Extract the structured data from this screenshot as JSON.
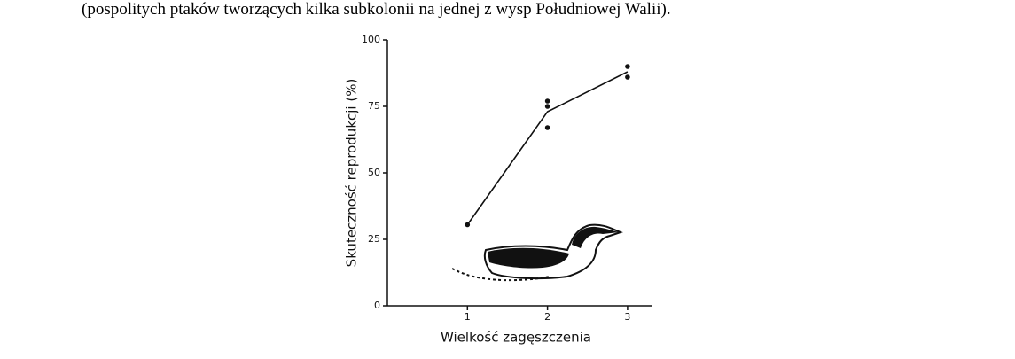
{
  "caption": "(pospolitych ptaków tworzących kilka subkolonii na jednej z wysp Południowej Walii).",
  "chart_data": {
    "type": "scatter",
    "x_label": "Wielkość zagęszczenia",
    "y_label": "Skuteczność reprodukcji (%)",
    "xlim": [
      0,
      3.3
    ],
    "ylim": [
      0,
      100
    ],
    "xticks": [
      1,
      2,
      3
    ],
    "yticks": [
      0,
      25,
      50,
      75,
      100
    ],
    "color": "#111111",
    "series": [
      {
        "type": "scatter",
        "x": [
          1,
          2,
          2,
          2,
          3,
          3
        ],
        "values": [
          30.5,
          77,
          75,
          67,
          90,
          86
        ]
      },
      {
        "type": "line",
        "x": [
          1,
          2,
          3
        ],
        "values": [
          30.5,
          73,
          88
        ]
      }
    ]
  }
}
